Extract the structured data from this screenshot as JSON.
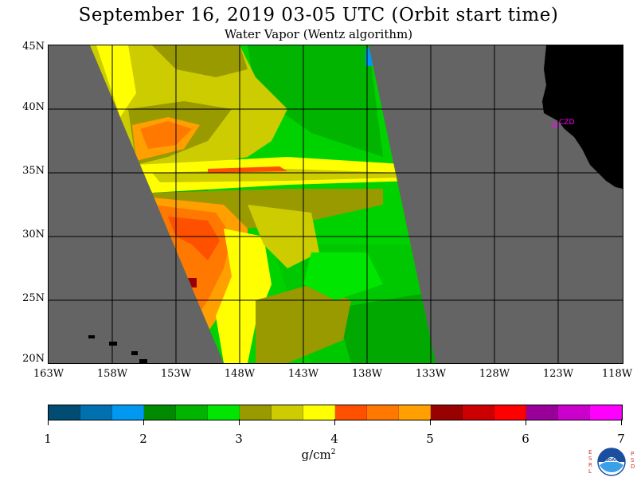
{
  "header": {
    "title": "September 16, 2019  03-05 UTC  (Orbit start time)",
    "subtitle": "Water Vapor (Wentz algorithm)"
  },
  "map": {
    "lat_labels": [
      "45N",
      "40N",
      "35N",
      "30N",
      "25N",
      "20N"
    ],
    "lon_labels": [
      "163W",
      "158W",
      "153W",
      "148W",
      "143W",
      "138W",
      "133W",
      "128W",
      "123W",
      "118W"
    ],
    "station_label": "CZD",
    "colors": {
      "ocean_nodata": "#646464",
      "land": "#000000",
      "grid": "#000000",
      "station": "#ff00ff"
    }
  },
  "colorbar": {
    "tick_labels": [
      "1",
      "2",
      "3",
      "4",
      "5",
      "6",
      "7"
    ],
    "units": "g/cm",
    "units_exp": "2",
    "segments": [
      "#004c73",
      "#0070b0",
      "#0098f0",
      "#008a00",
      "#00b400",
      "#00e600",
      "#999900",
      "#cccc00",
      "#ffff00",
      "#ff5000",
      "#ff7800",
      "#ff9f00",
      "#990000",
      "#cc0000",
      "#ff0000",
      "#990099",
      "#cc00cc",
      "#ff00ff"
    ]
  },
  "logo": {
    "left_letters": "ESRL",
    "right_letters": "PSD",
    "center_text": "NOAA"
  }
}
